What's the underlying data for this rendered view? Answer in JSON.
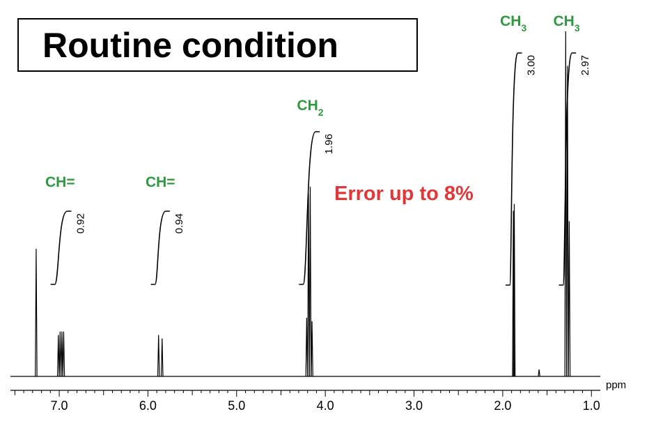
{
  "title": "Routine condition",
  "annotation": "Error up to 8%",
  "colors": {
    "group_label": "#2e9a3e",
    "annotation": "#e03838",
    "trace": "#000000"
  },
  "chart_data": {
    "type": "line",
    "xlabel": "ppm",
    "xlim": [
      7.55,
      0.9
    ],
    "x_reversed": true,
    "x_ticks": [
      {
        "value": 7.0,
        "label": "7.0"
      },
      {
        "value": 6.0,
        "label": "6.0"
      },
      {
        "value": 5.0,
        "label": "5.0"
      },
      {
        "value": 4.0,
        "label": "4.0"
      },
      {
        "value": 3.0,
        "label": "3.0"
      },
      {
        "value": 2.0,
        "label": "2.0"
      },
      {
        "value": 1.0,
        "label": "1.0"
      }
    ],
    "ylim": [
      0,
      1
    ],
    "peaks": [
      {
        "ppm": 7.26,
        "height": 0.37
      },
      {
        "ppm": 7.01,
        "height": 0.12
      },
      {
        "ppm": 6.99,
        "height": 0.13
      },
      {
        "ppm": 6.97,
        "height": 0.13
      },
      {
        "ppm": 6.95,
        "height": 0.13
      },
      {
        "ppm": 5.88,
        "height": 0.12
      },
      {
        "ppm": 5.84,
        "height": 0.11
      },
      {
        "ppm": 4.21,
        "height": 0.17
      },
      {
        "ppm": 4.19,
        "height": 0.53
      },
      {
        "ppm": 4.17,
        "height": 0.55
      },
      {
        "ppm": 4.15,
        "height": 0.16
      },
      {
        "ppm": 1.88,
        "height": 0.48
      },
      {
        "ppm": 1.87,
        "height": 0.5
      },
      {
        "ppm": 1.59,
        "height": 0.02
      },
      {
        "ppm": 1.29,
        "height": 1.0
      },
      {
        "ppm": 1.27,
        "height": 0.9
      },
      {
        "ppm": 1.25,
        "height": 0.45
      }
    ],
    "integrals": [
      {
        "from": 7.05,
        "to": 6.91,
        "value": "0.92"
      },
      {
        "from": 5.92,
        "to": 5.8,
        "value": "0.94"
      },
      {
        "from": 4.25,
        "to": 4.11,
        "value": "1.96"
      },
      {
        "from": 1.92,
        "to": 1.83,
        "value": "3.00"
      },
      {
        "from": 1.32,
        "to": 1.22,
        "value": "2.97"
      }
    ],
    "group_labels": [
      {
        "ppm": 6.99,
        "text": "CH=",
        "sub": ""
      },
      {
        "ppm": 5.86,
        "text": "CH=",
        "sub": ""
      },
      {
        "ppm": 4.17,
        "text": "CH",
        "sub": "2"
      },
      {
        "ppm": 1.88,
        "text": "CH",
        "sub": "3"
      },
      {
        "ppm": 1.28,
        "text": "CH",
        "sub": "3"
      }
    ]
  }
}
